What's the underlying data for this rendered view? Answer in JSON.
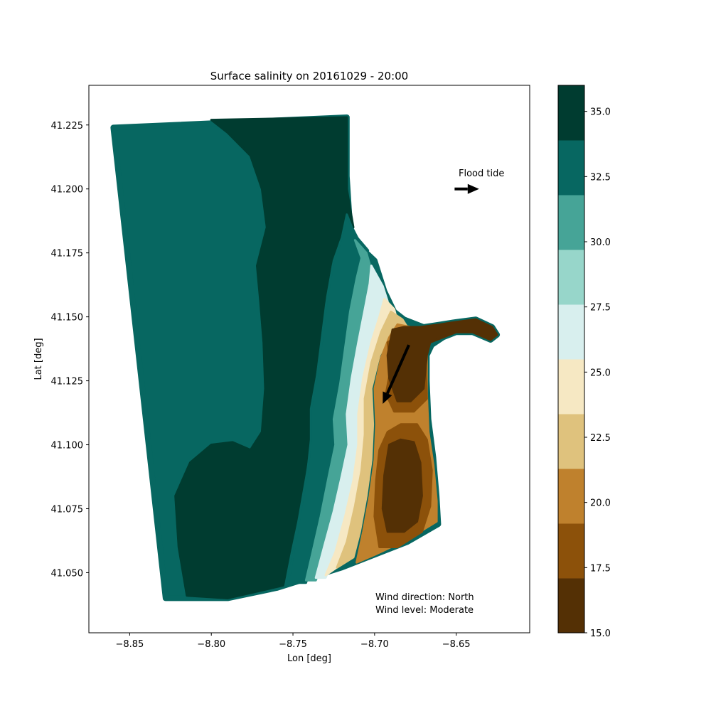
{
  "chart_data": {
    "type": "heatmap",
    "title": "Surface salinity on 20161029 - 20:00",
    "xlabel": "Lon [deg]",
    "ylabel": "Lat [deg]",
    "xlim": [
      -8.875,
      -8.605
    ],
    "ylim": [
      41.0265,
      41.2405
    ],
    "x_ticks": [
      -8.85,
      -8.8,
      -8.75,
      -8.7,
      -8.65
    ],
    "x_tick_labels": [
      "−8.85",
      "−8.80",
      "−8.75",
      "−8.70",
      "−8.65"
    ],
    "y_ticks": [
      41.05,
      41.075,
      41.1,
      41.125,
      41.15,
      41.175,
      41.2,
      41.225
    ],
    "y_tick_labels": [
      "41.050",
      "41.075",
      "41.100",
      "41.125",
      "41.150",
      "41.175",
      "41.200",
      "41.225"
    ],
    "colorbar": {
      "levels": [
        15.0,
        17.1,
        19.2,
        21.3,
        23.4,
        25.5,
        27.6,
        29.7,
        31.8,
        33.9,
        36.0
      ],
      "colors": [
        "#543005",
        "#8c510a",
        "#bf812d",
        "#dfc27d",
        "#f6e8c3",
        "#d8efee",
        "#97d6ca",
        "#46a497",
        "#076761",
        "#003c30"
      ],
      "ticks": [
        15.0,
        17.5,
        20.0,
        22.5,
        25.0,
        27.5,
        30.0,
        32.5,
        35.0
      ],
      "tick_labels": [
        "15.0",
        "17.5",
        "20.0",
        "22.5",
        "25.0",
        "27.5",
        "30.0",
        "32.5",
        "35.0"
      ]
    },
    "domain_polygon": [
      [
        -8.86,
        41.224
      ],
      [
        -8.717,
        41.228
      ],
      [
        -8.717,
        41.205
      ],
      [
        -8.715,
        41.185
      ],
      [
        -8.711,
        41.18
      ],
      [
        -8.705,
        41.175
      ],
      [
        -8.7,
        41.172
      ],
      [
        -8.694,
        41.16
      ],
      [
        -8.688,
        41.152
      ],
      [
        -8.682,
        41.149
      ],
      [
        -8.67,
        41.146
      ],
      [
        -8.66,
        41.147
      ],
      [
        -8.65,
        41.148
      ],
      [
        -8.638,
        41.149
      ],
      [
        -8.628,
        41.146
      ],
      [
        -8.625,
        41.143
      ],
      [
        -8.629,
        41.141
      ],
      [
        -8.64,
        41.144
      ],
      [
        -8.65,
        41.144
      ],
      [
        -8.658,
        41.142
      ],
      [
        -8.665,
        41.139
      ],
      [
        -8.668,
        41.135
      ],
      [
        -8.668,
        41.125
      ],
      [
        -8.667,
        41.11
      ],
      [
        -8.664,
        41.095
      ],
      [
        -8.662,
        41.08
      ],
      [
        -8.661,
        41.069
      ],
      [
        -8.68,
        41.062
      ],
      [
        -8.72,
        41.052
      ],
      [
        -8.76,
        41.044
      ],
      [
        -8.79,
        41.04
      ],
      [
        -8.828,
        41.04
      ]
    ],
    "regions": [
      {
        "value": 35.0,
        "polygon": [
          [
            -8.8,
            41.227
          ],
          [
            -8.717,
            41.228
          ],
          [
            -8.717,
            41.2
          ],
          [
            -8.713,
            41.185
          ],
          [
            -8.722,
            41.18
          ],
          [
            -8.727,
            41.17
          ],
          [
            -8.731,
            41.155
          ],
          [
            -8.734,
            41.14
          ],
          [
            -8.737,
            41.125
          ],
          [
            -8.74,
            41.112
          ],
          [
            -8.74,
            41.1
          ],
          [
            -8.743,
            41.088
          ],
          [
            -8.748,
            41.07
          ],
          [
            -8.752,
            41.058
          ],
          [
            -8.756,
            41.045
          ],
          [
            -8.79,
            41.04
          ],
          [
            -8.815,
            41.041
          ],
          [
            -8.82,
            41.06
          ],
          [
            -8.822,
            41.08
          ],
          [
            -8.813,
            41.093
          ],
          [
            -8.8,
            41.1
          ],
          [
            -8.787,
            41.101
          ],
          [
            -8.776,
            41.098
          ],
          [
            -8.769,
            41.105
          ],
          [
            -8.767,
            41.122
          ],
          [
            -8.768,
            41.14
          ],
          [
            -8.77,
            41.156
          ],
          [
            -8.772,
            41.17
          ],
          [
            -8.766,
            41.185
          ],
          [
            -8.769,
            41.2
          ],
          [
            -8.776,
            41.213
          ],
          [
            -8.79,
            41.222
          ]
        ]
      },
      {
        "value": 32.5,
        "polygon": [
          [
            -8.717,
            41.19
          ],
          [
            -8.712,
            41.182
          ],
          [
            -8.704,
            41.176
          ],
          [
            -8.708,
            41.165
          ],
          [
            -8.713,
            41.15
          ],
          [
            -8.717,
            41.135
          ],
          [
            -8.721,
            41.12
          ],
          [
            -8.724,
            41.107
          ],
          [
            -8.723,
            41.097
          ],
          [
            -8.727,
            41.083
          ],
          [
            -8.732,
            41.068
          ],
          [
            -8.737,
            41.055
          ],
          [
            -8.742,
            41.046
          ],
          [
            -8.753,
            41.046
          ],
          [
            -8.749,
            41.06
          ],
          [
            -8.745,
            41.075
          ],
          [
            -8.741,
            41.09
          ],
          [
            -8.739,
            41.102
          ],
          [
            -8.739,
            41.114
          ],
          [
            -8.735,
            41.128
          ],
          [
            -8.732,
            41.142
          ],
          [
            -8.729,
            41.158
          ],
          [
            -8.725,
            41.172
          ],
          [
            -8.72,
            41.181
          ]
        ]
      },
      {
        "value": 30.0,
        "polygon": [
          [
            -8.712,
            41.18
          ],
          [
            -8.705,
            41.175
          ],
          [
            -8.701,
            41.166
          ],
          [
            -8.706,
            41.154
          ],
          [
            -8.71,
            41.14
          ],
          [
            -8.714,
            41.125
          ],
          [
            -8.717,
            41.112
          ],
          [
            -8.716,
            41.1
          ],
          [
            -8.72,
            41.086
          ],
          [
            -8.725,
            41.07
          ],
          [
            -8.731,
            41.056
          ],
          [
            -8.736,
            41.047
          ],
          [
            -8.742,
            41.047
          ],
          [
            -8.738,
            41.058
          ],
          [
            -8.733,
            41.072
          ],
          [
            -8.728,
            41.088
          ],
          [
            -8.724,
            41.1
          ],
          [
            -8.725,
            41.11
          ],
          [
            -8.721,
            41.124
          ],
          [
            -8.718,
            41.138
          ],
          [
            -8.715,
            41.152
          ],
          [
            -8.711,
            41.165
          ],
          [
            -8.708,
            41.173
          ]
        ]
      },
      {
        "value": 27.5,
        "polygon": [
          [
            -8.702,
            41.17
          ],
          [
            -8.695,
            41.162
          ],
          [
            -8.692,
            41.156
          ],
          [
            -8.696,
            41.148
          ],
          [
            -8.702,
            41.138
          ],
          [
            -8.707,
            41.125
          ],
          [
            -8.71,
            41.11
          ],
          [
            -8.709,
            41.098
          ],
          [
            -8.713,
            41.085
          ],
          [
            -8.718,
            41.07
          ],
          [
            -8.724,
            41.057
          ],
          [
            -8.73,
            41.048
          ],
          [
            -8.736,
            41.048
          ],
          [
            -8.731,
            41.06
          ],
          [
            -8.725,
            41.074
          ],
          [
            -8.72,
            41.088
          ],
          [
            -8.716,
            41.1
          ],
          [
            -8.717,
            41.112
          ],
          [
            -8.714,
            41.126
          ],
          [
            -8.71,
            41.14
          ],
          [
            -8.706,
            41.153
          ],
          [
            -8.703,
            41.163
          ]
        ]
      },
      {
        "value": 25.0,
        "polygon": [
          [
            -8.694,
            41.157
          ],
          [
            -8.688,
            41.153
          ],
          [
            -8.686,
            41.148
          ],
          [
            -8.694,
            41.143
          ],
          [
            -8.7,
            41.132
          ],
          [
            -8.704,
            41.118
          ],
          [
            -8.705,
            41.105
          ],
          [
            -8.706,
            41.092
          ],
          [
            -8.71,
            41.078
          ],
          [
            -8.715,
            41.064
          ],
          [
            -8.721,
            41.053
          ],
          [
            -8.73,
            41.049
          ],
          [
            -8.724,
            41.058
          ],
          [
            -8.718,
            41.072
          ],
          [
            -8.713,
            41.086
          ],
          [
            -8.71,
            41.1
          ],
          [
            -8.71,
            41.112
          ],
          [
            -8.707,
            41.126
          ],
          [
            -8.702,
            41.14
          ],
          [
            -8.697,
            41.15
          ]
        ]
      },
      {
        "value": 22.5,
        "polygon": [
          [
            -8.69,
            41.152
          ],
          [
            -8.683,
            41.149
          ],
          [
            -8.68,
            41.146
          ],
          [
            -8.69,
            41.143
          ],
          [
            -8.697,
            41.135
          ],
          [
            -8.702,
            41.122
          ],
          [
            -8.701,
            41.108
          ],
          [
            -8.702,
            41.094
          ],
          [
            -8.705,
            41.08
          ],
          [
            -8.709,
            41.066
          ],
          [
            -8.713,
            41.056
          ],
          [
            -8.723,
            41.052
          ],
          [
            -8.717,
            41.062
          ],
          [
            -8.712,
            41.076
          ],
          [
            -8.708,
            41.09
          ],
          [
            -8.706,
            41.104
          ],
          [
            -8.706,
            41.118
          ],
          [
            -8.702,
            41.132
          ],
          [
            -8.696,
            41.144
          ]
        ]
      },
      {
        "value": 20.0,
        "polygon": [
          [
            -8.686,
            41.147
          ],
          [
            -8.678,
            41.146
          ],
          [
            -8.668,
            41.14
          ],
          [
            -8.668,
            41.12
          ],
          [
            -8.667,
            41.105
          ],
          [
            -8.664,
            41.092
          ],
          [
            -8.662,
            41.078
          ],
          [
            -8.662,
            41.07
          ],
          [
            -8.68,
            41.063
          ],
          [
            -8.7,
            41.057
          ],
          [
            -8.711,
            41.054
          ],
          [
            -8.707,
            41.066
          ],
          [
            -8.703,
            41.08
          ],
          [
            -8.7,
            41.094
          ],
          [
            -8.699,
            41.108
          ],
          [
            -8.7,
            41.122
          ],
          [
            -8.696,
            41.134
          ],
          [
            -8.691,
            41.142
          ]
        ]
      },
      {
        "value": 17.5,
        "polygon": [
          [
            -8.692,
            41.14
          ],
          [
            -8.69,
            41.13
          ],
          [
            -8.693,
            41.12
          ],
          [
            -8.688,
            41.113
          ],
          [
            -8.676,
            41.113
          ],
          [
            -8.668,
            41.118
          ],
          [
            -8.669,
            41.14
          ],
          [
            -8.68,
            41.145
          ]
        ]
      },
      {
        "value": 17.5,
        "polygon": [
          [
            -8.692,
            41.105
          ],
          [
            -8.684,
            41.108
          ],
          [
            -8.674,
            41.108
          ],
          [
            -8.668,
            41.102
          ],
          [
            -8.665,
            41.09
          ],
          [
            -8.666,
            41.076
          ],
          [
            -8.671,
            41.066
          ],
          [
            -8.686,
            41.06
          ],
          [
            -8.697,
            41.06
          ],
          [
            -8.7,
            41.072
          ],
          [
            -8.699,
            41.086
          ],
          [
            -8.697,
            41.098
          ]
        ]
      },
      {
        "value": 15.0,
        "polygon": [
          [
            -8.689,
            41.145
          ],
          [
            -8.692,
            41.135
          ],
          [
            -8.691,
            41.126
          ],
          [
            -8.686,
            41.117
          ],
          [
            -8.678,
            41.117
          ],
          [
            -8.67,
            41.122
          ],
          [
            -8.668,
            41.135
          ],
          [
            -8.666,
            41.14
          ],
          [
            -8.658,
            41.142
          ],
          [
            -8.65,
            41.144
          ],
          [
            -8.64,
            41.144
          ],
          [
            -8.629,
            41.141
          ],
          [
            -8.625,
            41.143
          ],
          [
            -8.628,
            41.146
          ],
          [
            -8.638,
            41.149
          ],
          [
            -8.65,
            41.148
          ],
          [
            -8.66,
            41.147
          ],
          [
            -8.672,
            41.146
          ],
          [
            -8.682,
            41.146
          ]
        ]
      },
      {
        "value": 15.0,
        "polygon": [
          [
            -8.691,
            41.1
          ],
          [
            -8.684,
            41.102
          ],
          [
            -8.676,
            41.101
          ],
          [
            -8.672,
            41.093
          ],
          [
            -8.671,
            41.08
          ],
          [
            -8.674,
            41.07
          ],
          [
            -8.682,
            41.066
          ],
          [
            -8.692,
            41.066
          ],
          [
            -8.695,
            41.075
          ],
          [
            -8.694,
            41.088
          ]
        ]
      }
    ],
    "arrows": [
      {
        "kind": "current",
        "from": [
          -8.679,
          41.139
        ],
        "to": [
          -8.695,
          41.116
        ]
      },
      {
        "kind": "legend",
        "from": [
          -8.651,
          41.2
        ],
        "to": [
          -8.636,
          41.2
        ]
      }
    ],
    "annotations": {
      "tide": "Flood tide",
      "wind_direction": "Wind direction: North",
      "wind_level": "Wind level: Moderate"
    }
  }
}
